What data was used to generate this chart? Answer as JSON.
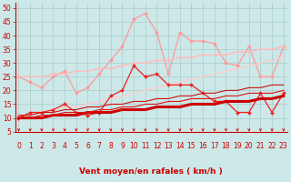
{
  "x": [
    0,
    1,
    2,
    3,
    4,
    5,
    6,
    7,
    8,
    9,
    10,
    11,
    12,
    13,
    14,
    15,
    16,
    17,
    18,
    19,
    20,
    21,
    22,
    23
  ],
  "series": [
    {
      "name": "line_pink_jagged",
      "color": "#ff9999",
      "linewidth": 0.9,
      "marker": "D",
      "markersize": 2.0,
      "y": [
        25,
        23,
        21,
        25,
        27,
        19,
        21,
        26,
        31,
        36,
        46,
        48,
        41,
        26,
        41,
        38,
        38,
        37,
        30,
        29,
        36,
        25,
        25,
        36
      ]
    },
    {
      "name": "line_pink_upper_trend",
      "color": "#ffbbbb",
      "linewidth": 1.0,
      "marker": "D",
      "markersize": 1.5,
      "y": [
        25,
        25,
        25,
        26,
        26,
        27,
        27,
        28,
        28,
        29,
        30,
        30,
        31,
        31,
        32,
        32,
        33,
        33,
        33,
        34,
        34,
        35,
        35,
        36
      ]
    },
    {
      "name": "line_pink_lower_trend",
      "color": "#ffcccc",
      "linewidth": 1.0,
      "marker": null,
      "markersize": 0,
      "y": [
        10,
        11,
        12,
        13,
        14,
        14,
        15,
        16,
        17,
        18,
        19,
        20,
        21,
        22,
        23,
        24,
        25,
        26,
        27,
        28,
        29,
        30,
        31,
        32
      ]
    },
    {
      "name": "line_red_jagged",
      "color": "#ee2222",
      "linewidth": 0.9,
      "marker": "D",
      "markersize": 2.0,
      "y": [
        10,
        12,
        12,
        13,
        15,
        12,
        11,
        12,
        18,
        20,
        29,
        25,
        26,
        22,
        22,
        22,
        19,
        16,
        16,
        12,
        12,
        19,
        12,
        19
      ]
    },
    {
      "name": "line_red_thick_trend",
      "color": "#cc0000",
      "linewidth": 2.2,
      "marker": null,
      "markersize": 0,
      "y": [
        10,
        10,
        10,
        11,
        11,
        11,
        12,
        12,
        12,
        13,
        13,
        13,
        14,
        14,
        14,
        15,
        15,
        15,
        16,
        16,
        16,
        17,
        17,
        18
      ]
    },
    {
      "name": "line_red_thin_trend1",
      "color": "#dd1111",
      "linewidth": 0.8,
      "marker": null,
      "markersize": 0,
      "y": [
        10,
        10,
        11,
        11,
        12,
        12,
        12,
        13,
        13,
        14,
        14,
        15,
        15,
        16,
        16,
        17,
        17,
        17,
        18,
        18,
        19,
        19,
        19,
        20
      ]
    },
    {
      "name": "line_red_thin_trend2",
      "color": "#cc1111",
      "linewidth": 0.8,
      "marker": null,
      "markersize": 0,
      "y": [
        11,
        11,
        12,
        12,
        13,
        13,
        14,
        14,
        15,
        15,
        16,
        16,
        17,
        17,
        18,
        18,
        19,
        19,
        20,
        20,
        21,
        21,
        22,
        22
      ]
    }
  ],
  "xlim": [
    -0.3,
    23.3
  ],
  "ylim": [
    5,
    52
  ],
  "yticks": [
    5,
    10,
    15,
    20,
    25,
    30,
    35,
    40,
    45,
    50
  ],
  "xticks": [
    0,
    1,
    2,
    3,
    4,
    5,
    6,
    7,
    8,
    9,
    10,
    11,
    12,
    13,
    14,
    15,
    16,
    17,
    18,
    19,
    20,
    21,
    22,
    23
  ],
  "xlabel": "Vent moyen/en rafales ( km/h )",
  "xlabel_color": "#cc0000",
  "xlabel_fontsize": 6.5,
  "bg_color": "#cce8e8",
  "grid_color": "#aacccc",
  "tick_color": "#cc0000",
  "tick_fontsize": 5.5,
  "arrow_color": "#cc0000"
}
